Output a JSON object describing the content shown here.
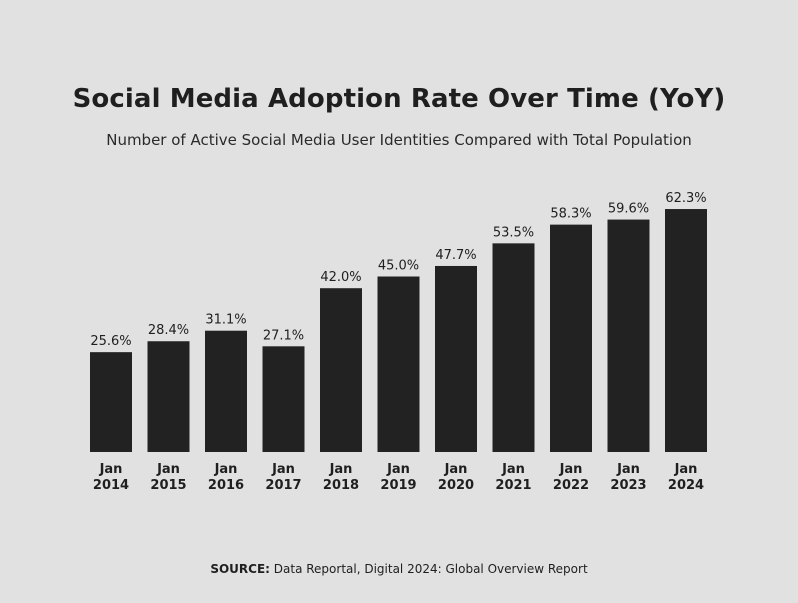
{
  "chart_data": {
    "type": "bar",
    "title": "Social Media Adoption Rate Over Time (YoY)",
    "subtitle": "Number of Active Social Media User Identities Compared with Total Population",
    "categories": [
      [
        "Jan",
        "2014"
      ],
      [
        "Jan",
        "2015"
      ],
      [
        "Jan",
        "2016"
      ],
      [
        "Jan",
        "2017"
      ],
      [
        "Jan",
        "2018"
      ],
      [
        "Jan",
        "2019"
      ],
      [
        "Jan",
        "2020"
      ],
      [
        "Jan",
        "2021"
      ],
      [
        "Jan",
        "2022"
      ],
      [
        "Jan",
        "2023"
      ],
      [
        "Jan",
        "2024"
      ]
    ],
    "values": [
      25.6,
      28.4,
      31.1,
      27.1,
      42.0,
      45.0,
      47.7,
      53.5,
      58.3,
      59.6,
      62.3
    ],
    "data_labels": [
      "25.6%",
      "28.4%",
      "31.1%",
      "27.1%",
      "42.0%",
      "45.0%",
      "47.7%",
      "53.5%",
      "58.3%",
      "59.6%",
      "62.3%"
    ],
    "xlabel": "",
    "ylabel": "",
    "grid": false,
    "legend": "none",
    "bar_color": "#222222"
  },
  "source": {
    "label": "SOURCE:",
    "text": " Data Reportal, Digital 2024: Global Overview Report"
  }
}
